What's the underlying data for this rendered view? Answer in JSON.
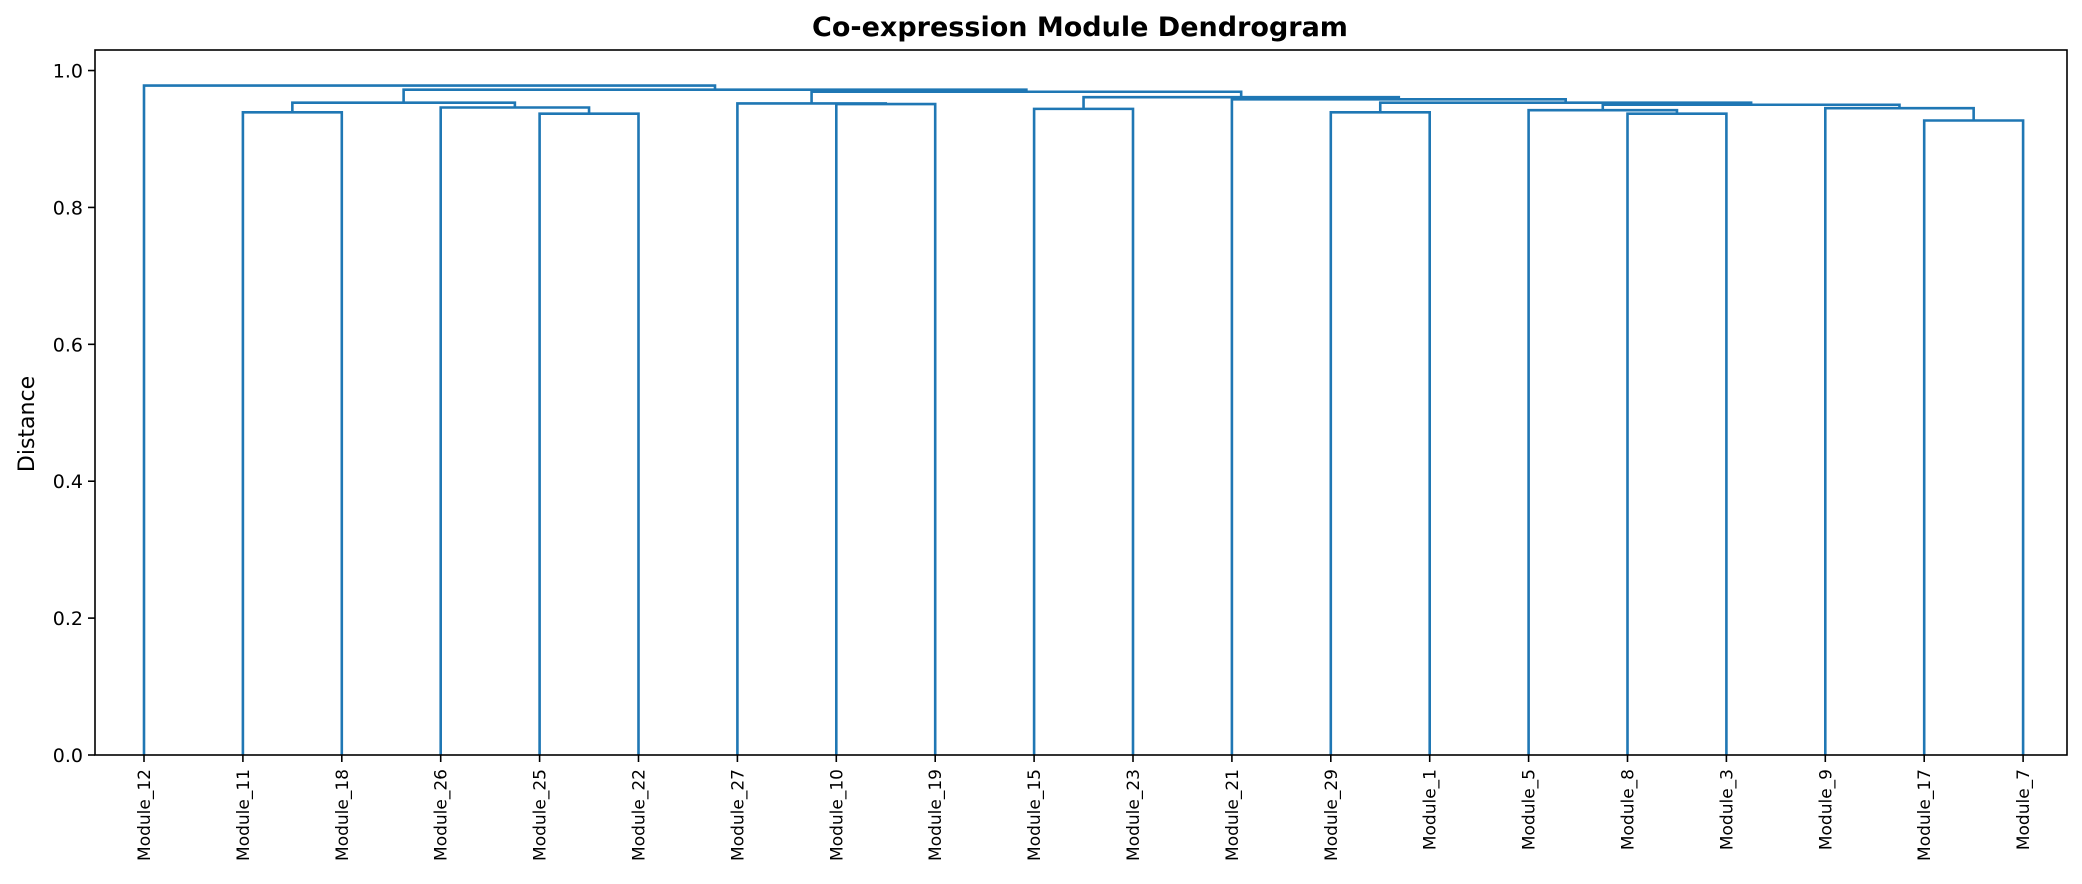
{
  "chart_data": {
    "type": "dendrogram",
    "title": "Co-expression Module Dendrogram",
    "xlabel": "",
    "ylabel": "Distance",
    "ylim": [
      0,
      1.03
    ],
    "yticks": [
      0.0,
      0.2,
      0.4,
      0.6,
      0.8,
      1.0
    ],
    "ytick_labels": [
      "0.0",
      "0.2",
      "0.4",
      "0.6",
      "0.8",
      "1.0"
    ],
    "grid": false,
    "link_color": "#1f77b4",
    "leaves": [
      "Module_12",
      "Module_11",
      "Module_18",
      "Module_26",
      "Module_25",
      "Module_22",
      "Module_27",
      "Module_10",
      "Module_19",
      "Module_15",
      "Module_23",
      "Module_21",
      "Module_29",
      "Module_1",
      "Module_5",
      "Module_8",
      "Module_3",
      "Module_9",
      "Module_17",
      "Module_7"
    ],
    "links": [
      {
        "left": 1,
        "right": 2,
        "height": 0.939
      },
      {
        "left": 4,
        "right": 5,
        "height": 0.937
      },
      {
        "left": 3,
        "right": 4.5,
        "height": 0.946
      },
      {
        "left": 1.5,
        "right": 3.75,
        "height": 0.953
      },
      {
        "left": 7,
        "right": 8,
        "height": 0.951
      },
      {
        "left": 6,
        "right": 7.5,
        "height": 0.952
      },
      {
        "left": 9,
        "right": 10,
        "height": 0.944
      },
      {
        "left": 12,
        "right": 13,
        "height": 0.939
      },
      {
        "left": 15,
        "right": 16,
        "height": 0.937
      },
      {
        "left": 14,
        "right": 15.5,
        "height": 0.942
      },
      {
        "left": 18,
        "right": 19,
        "height": 0.927
      },
      {
        "left": 17,
        "right": 18.5,
        "height": 0.945
      },
      {
        "left": 14.75,
        "right": 17.75,
        "height": 0.95
      },
      {
        "left": 12.5,
        "right": 16.25,
        "height": 0.953
      },
      {
        "left": 11,
        "right": 14.375,
        "height": 0.958
      },
      {
        "left": 9.5,
        "right": 12.6875,
        "height": 0.961
      },
      {
        "left": 6.75,
        "right": 11.09375,
        "height": 0.969
      },
      {
        "left": 2.625,
        "right": 8.921875,
        "height": 0.972
      },
      {
        "left": 0,
        "right": 5.7734375,
        "height": 0.978
      }
    ]
  }
}
